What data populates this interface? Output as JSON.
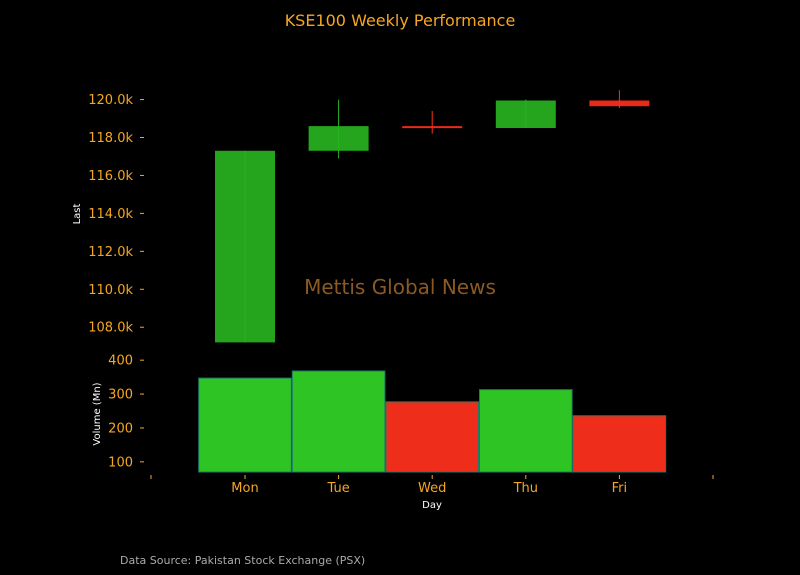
{
  "chart_data": {
    "type": "candlestick",
    "title": "KSE100 Weekly Performance",
    "watermark": "Mettis Global News",
    "source": "Data Source: Pakistan Stock Exchange (PSX)",
    "xlabel": "Day",
    "price_ylabel": "Last",
    "volume_ylabel": "Volume (Mn)",
    "categories": [
      "Mon",
      "Tue",
      "Wed",
      "Thu",
      "Fri"
    ],
    "candles": [
      {
        "open": 107.2,
        "close": 117.3,
        "high": 117.3,
        "low": 107.2
      },
      {
        "open": 117.3,
        "close": 118.6,
        "high": 120.0,
        "low": 116.9
      },
      {
        "open": 118.6,
        "close": 118.5,
        "high": 119.4,
        "low": 118.2
      },
      {
        "open": 118.5,
        "close": 119.95,
        "high": 120.0,
        "low": 118.5
      },
      {
        "open": 119.95,
        "close": 119.65,
        "high": 120.5,
        "low": 119.55
      }
    ],
    "price_yticks": [
      "108.0k",
      "110.0k",
      "112.0k",
      "114.0k",
      "116.0k",
      "118.0k",
      "120.0k"
    ],
    "price_ytick_values": [
      108,
      110,
      112,
      114,
      116,
      118,
      120
    ],
    "price_ylim": [
      106.8,
      121.4
    ],
    "volume": [
      347,
      368,
      277,
      313,
      236
    ],
    "volume_yticks": [
      "100",
      "200",
      "300",
      "400"
    ],
    "volume_ytick_values": [
      100,
      200,
      300,
      400
    ],
    "volume_ylim": [
      70,
      430
    ],
    "colors": {
      "up": "#27b31f",
      "down": "#ff2e1a",
      "volume_up": "#2dc424",
      "volume_down": "#ee2e1b",
      "volume_edge": "#1f7a6a",
      "text_accent": "#f5a623",
      "background": "#000000"
    }
  }
}
